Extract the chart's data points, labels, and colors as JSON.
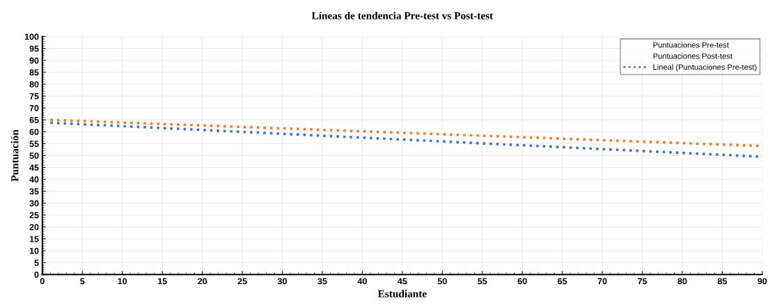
{
  "chart_data": {
    "type": "line",
    "title": "Líneas de tendencia Pre-test vs Post-test",
    "xlabel": "Estudiante",
    "ylabel": "Puntuación",
    "xlim": [
      0,
      90
    ],
    "xticks": [
      0,
      5,
      10,
      15,
      20,
      25,
      30,
      35,
      40,
      45,
      50,
      55,
      60,
      65,
      70,
      75,
      80,
      85,
      90
    ],
    "ylim": [
      0,
      100
    ],
    "yticks": [
      0,
      5,
      10,
      15,
      20,
      25,
      30,
      35,
      40,
      45,
      50,
      55,
      60,
      65,
      70,
      75,
      80,
      85,
      90,
      95,
      100
    ],
    "grid": true,
    "x": [
      1,
      90
    ],
    "legend": "top right",
    "line_style": "dotted",
    "marker": "none",
    "series": [
      {
        "name": "Puntuaciones Pre-test",
        "values": [
          null,
          null
        ]
      },
      {
        "name": "Puntuaciones Post-test",
        "values": [
          null,
          null
        ]
      },
      {
        "name": "Lineal (Puntuaciones Pre-test)",
        "color": "#4472c4",
        "values": [
          63.8,
          49.5
        ]
      },
      {
        "color": "#ed7d31",
        "values": [
          65,
          54
        ]
      }
    ]
  }
}
